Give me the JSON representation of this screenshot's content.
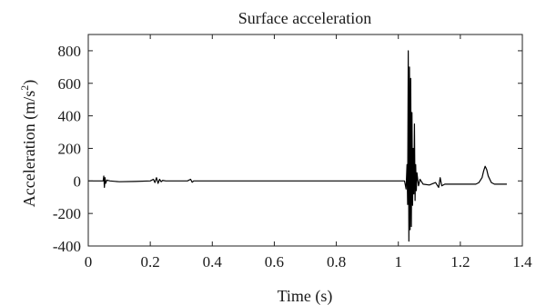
{
  "chart_data": {
    "type": "line",
    "title": "Surface acceleration",
    "xlabel": "Time (s)",
    "ylabel_main": "Acceleration (m/s",
    "ylabel_sup": "2",
    "ylabel_close": ")",
    "xlim": [
      0,
      1.4
    ],
    "ylim": [
      -400,
      900
    ],
    "xticks": [
      0,
      0.2,
      0.4,
      0.6,
      0.8,
      1,
      1.2,
      1.4
    ],
    "xtick_labels": [
      "0",
      "0.2",
      "0.4",
      "0.6",
      "0.8",
      "1",
      "1.2",
      "1.4"
    ],
    "yticks": [
      -400,
      -200,
      0,
      200,
      400,
      600,
      800
    ],
    "ytick_labels": [
      "-400",
      "-200",
      "0",
      "200",
      "400",
      "600",
      "800"
    ],
    "grid": false,
    "line_color": "#000000",
    "series": [
      {
        "x": [
          0.0,
          0.048,
          0.05,
          0.052,
          0.054,
          0.056,
          0.06,
          0.07,
          0.1,
          0.15,
          0.2,
          0.21,
          0.215,
          0.22,
          0.225,
          0.23,
          0.235,
          0.24,
          0.25,
          0.3,
          0.32,
          0.33,
          0.335,
          0.34,
          0.4,
          0.6,
          0.8,
          1.0,
          1.02,
          1.025,
          1.028,
          1.03,
          1.032,
          1.034,
          1.036,
          1.038,
          1.04,
          1.042,
          1.044,
          1.046,
          1.048,
          1.05,
          1.052,
          1.054,
          1.056,
          1.058,
          1.06,
          1.065,
          1.07,
          1.08,
          1.1,
          1.12,
          1.13,
          1.135,
          1.14,
          1.15,
          1.2,
          1.25,
          1.26,
          1.27,
          1.275,
          1.28,
          1.285,
          1.29,
          1.3,
          1.31,
          1.32,
          1.35
        ],
        "y": [
          0,
          0,
          30,
          -40,
          20,
          -15,
          5,
          0,
          -5,
          -3,
          0,
          10,
          -10,
          20,
          -15,
          10,
          -5,
          3,
          0,
          0,
          0,
          10,
          -8,
          0,
          0,
          0,
          0,
          0,
          0,
          -50,
          100,
          -145,
          800,
          -370,
          700,
          -300,
          630,
          -280,
          420,
          -150,
          200,
          -80,
          350,
          -120,
          100,
          -60,
          50,
          -30,
          10,
          -20,
          -25,
          -10,
          -40,
          20,
          -30,
          -20,
          -20,
          -20,
          -10,
          20,
          60,
          90,
          70,
          30,
          -10,
          -20,
          -20,
          -20
        ]
      }
    ]
  }
}
